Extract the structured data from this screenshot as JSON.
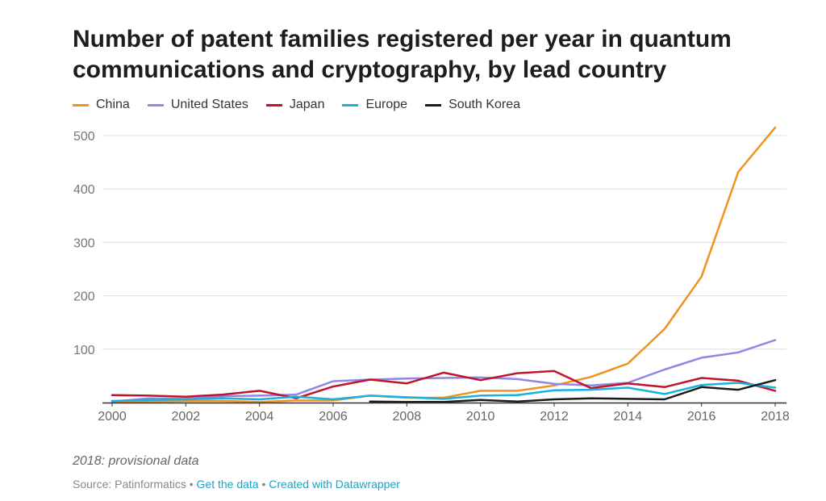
{
  "title": "Number of patent families registered per year in quantum communications and cryptography, by lead country",
  "note": "2018: provisional data",
  "source": {
    "prefix": "Source: Patinformatics",
    "separator": "•",
    "get_data": "Get the data",
    "created_with": "Created with Datawrapper"
  },
  "chart_data": {
    "type": "line",
    "title": "Number of patent families registered per year in quantum communications and cryptography, by lead country",
    "xlabel": "",
    "ylabel": "",
    "x": [
      2000,
      2001,
      2002,
      2003,
      2004,
      2005,
      2006,
      2007,
      2008,
      2009,
      2010,
      2011,
      2012,
      2013,
      2014,
      2015,
      2016,
      2017,
      2018
    ],
    "xticks": [
      "2000",
      "2002",
      "2004",
      "2006",
      "2008",
      "2010",
      "2012",
      "2014",
      "2016",
      "2018"
    ],
    "yticks": [
      "100",
      "200",
      "300",
      "400",
      "500"
    ],
    "ylim": [
      0,
      520
    ],
    "xlim": [
      2000,
      2018
    ],
    "grid": true,
    "legend_position": "top-left",
    "series": [
      {
        "name": "China",
        "color": "#f0931e",
        "values": [
          1,
          2,
          3,
          3,
          1,
          4,
          4,
          13,
          9,
          9,
          22,
          22,
          32,
          48,
          73,
          138,
          236,
          432,
          515
        ]
      },
      {
        "name": "United States",
        "color": "#8f86e6",
        "values": [
          2,
          8,
          7,
          12,
          13,
          15,
          40,
          43,
          45,
          46,
          47,
          44,
          35,
          32,
          37,
          62,
          84,
          94,
          117
        ]
      },
      {
        "name": "Japan",
        "color": "#c1142c",
        "values": [
          14,
          13,
          11,
          15,
          22,
          8,
          30,
          43,
          36,
          56,
          42,
          55,
          59,
          27,
          36,
          29,
          46,
          41,
          22
        ]
      },
      {
        "name": "Europe",
        "color": "#18b1e0",
        "values": [
          3,
          5,
          6,
          8,
          6,
          11,
          6,
          13,
          10,
          7,
          13,
          14,
          23,
          24,
          28,
          16,
          33,
          37,
          28
        ]
      },
      {
        "name": "South Korea",
        "color": "#1b1b1b",
        "values": [
          null,
          null,
          null,
          null,
          null,
          null,
          null,
          2,
          1,
          1,
          5,
          2,
          6,
          8,
          7,
          6,
          29,
          24,
          42
        ]
      }
    ]
  }
}
